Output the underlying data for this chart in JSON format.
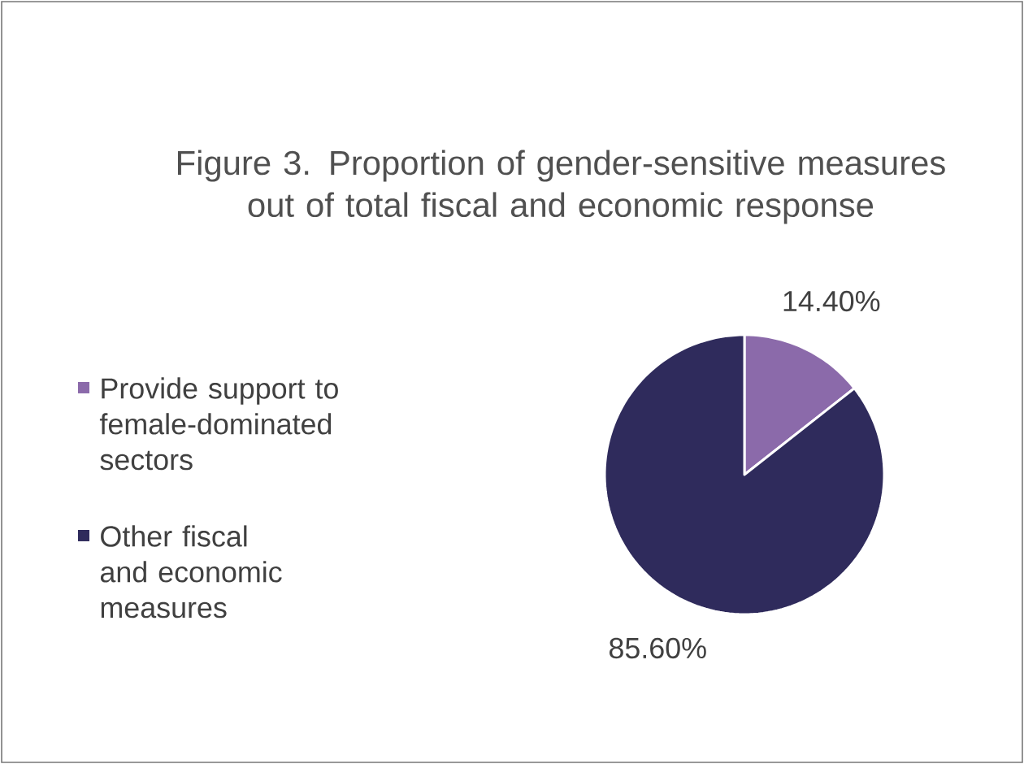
{
  "chart_data": {
    "type": "pie",
    "title": "Figure 3. Proportion of gender-sensitive measures out of total fiscal and economic response",
    "categories": [
      "Provide support to female-dominated sectors",
      "Other fiscal and economic measures"
    ],
    "values": [
      14.4,
      85.6
    ],
    "colors": [
      "#8b6aaa",
      "#2f2b5c"
    ],
    "value_labels": [
      "14.40%",
      "85.60%"
    ],
    "legend": "left"
  }
}
